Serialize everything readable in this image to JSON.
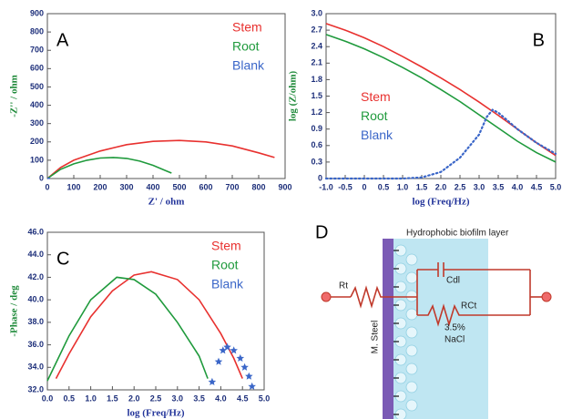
{
  "chart_data": [
    {
      "type": "line",
      "panel_label": "A",
      "xlabel": "Z' / ohm",
      "ylabel": "-Z'' / ohm",
      "legend": "upper right",
      "xlim": [
        0,
        900
      ],
      "xticks": [
        0,
        100,
        200,
        300,
        400,
        500,
        600,
        700,
        800,
        900
      ],
      "ylim": [
        0,
        900
      ],
      "yticks": [
        0,
        100,
        200,
        300,
        400,
        500,
        600,
        700,
        800,
        900
      ],
      "series": [
        {
          "name": "Stem",
          "color": "#e8312f",
          "style": "line",
          "x": [
            0,
            50,
            100,
            200,
            300,
            400,
            500,
            600,
            700,
            800,
            860
          ],
          "values": [
            0,
            60,
            100,
            150,
            185,
            203,
            208,
            200,
            178,
            140,
            115
          ]
        },
        {
          "name": "Root",
          "color": "#1f9a3c",
          "style": "line",
          "x": [
            0,
            50,
            100,
            150,
            200,
            250,
            300,
            350,
            400,
            450,
            470
          ],
          "values": [
            0,
            50,
            80,
            100,
            112,
            115,
            110,
            95,
            72,
            42,
            30
          ]
        },
        {
          "name": "Blank",
          "color": "#3a66c8",
          "style": "line",
          "x": [
            0,
            5,
            10
          ],
          "values": [
            0,
            2,
            0
          ]
        }
      ]
    },
    {
      "type": "line",
      "panel_label": "B",
      "xlabel": "log (Freq/Hz)",
      "ylabel": "log (Z/ohm)",
      "legend": "center left",
      "xlim": [
        -1,
        5
      ],
      "xticks": [
        {
          "value": -1,
          "label": "-1.0"
        },
        -0.5,
        0,
        0.5,
        {
          "value": 1,
          "label": "1.0"
        },
        1.5,
        {
          "value": 2,
          "label": "2.0"
        },
        2.5,
        {
          "value": 3,
          "label": "3.0"
        },
        3.5,
        {
          "value": 4,
          "label": "4.0"
        },
        4.5,
        {
          "value": 5,
          "label": "5.0"
        }
      ],
      "ylim": [
        0,
        3
      ],
      "yticks": [
        0,
        0.3,
        0.6,
        0.9,
        1.2,
        1.5,
        1.8,
        2.1,
        2.4,
        2.7,
        {
          "value": 3,
          "label": "3.0"
        }
      ],
      "series": [
        {
          "name": "Stem",
          "color": "#e8312f",
          "style": "line",
          "x": [
            -1,
            -0.5,
            0,
            0.5,
            1,
            1.5,
            2,
            2.5,
            3,
            3.5,
            4,
            4.5,
            5
          ],
          "values": [
            2.82,
            2.7,
            2.56,
            2.4,
            2.22,
            2.03,
            1.83,
            1.62,
            1.39,
            1.15,
            0.9,
            0.65,
            0.42
          ]
        },
        {
          "name": "Root",
          "color": "#1f9a3c",
          "style": "line",
          "x": [
            -1,
            -0.5,
            0,
            0.5,
            1,
            1.5,
            2,
            2.5,
            3,
            3.5,
            4,
            4.5,
            5
          ],
          "values": [
            2.62,
            2.5,
            2.36,
            2.2,
            2.02,
            1.83,
            1.62,
            1.4,
            1.16,
            0.92,
            0.68,
            0.47,
            0.3
          ]
        },
        {
          "name": "Blank",
          "color": "#3a66c8",
          "style": "dotted",
          "x": [
            -1,
            -0.5,
            0,
            0.5,
            1,
            1.5,
            2,
            2.5,
            3,
            3.2,
            3.35,
            3.5,
            3.75,
            4,
            4.5,
            5
          ],
          "values": [
            0,
            0,
            0,
            0,
            0,
            0.02,
            0.12,
            0.38,
            0.8,
            1.12,
            1.25,
            1.2,
            1.05,
            0.9,
            0.65,
            0.45
          ]
        }
      ]
    },
    {
      "type": "line",
      "panel_label": "C",
      "xlabel": "log (Freq/Hz)",
      "ylabel": "-Phase / deg",
      "legend": "upper right",
      "xlim": [
        0,
        5
      ],
      "xticks": [
        {
          "value": 0,
          "label": "0.0"
        },
        0.5,
        {
          "value": 1,
          "label": "1.0"
        },
        1.5,
        {
          "value": 2,
          "label": "2.0"
        },
        2.5,
        {
          "value": 3,
          "label": "3.0"
        },
        3.5,
        {
          "value": 4,
          "label": "4.0"
        },
        4.5,
        {
          "value": 5,
          "label": "5.0"
        }
      ],
      "ylim": [
        32,
        46
      ],
      "yticks": [
        {
          "value": 32,
          "label": "32.0"
        },
        {
          "value": 34,
          "label": "34.0"
        },
        {
          "value": 36,
          "label": "36.0"
        },
        {
          "value": 38,
          "label": "38.0"
        },
        {
          "value": 40,
          "label": "40.0"
        },
        {
          "value": 42,
          "label": "42.0"
        },
        {
          "value": 44,
          "label": "44.0"
        },
        {
          "value": 46,
          "label": "46.0"
        }
      ],
      "series": [
        {
          "name": "Stem",
          "color": "#e8312f",
          "style": "line",
          "x": [
            0.2,
            0.5,
            1,
            1.5,
            2,
            2.4,
            3,
            3.5,
            4,
            4.3,
            4.5
          ],
          "values": [
            33,
            35.2,
            38.5,
            40.8,
            42.2,
            42.5,
            41.8,
            40,
            37,
            34.8,
            33
          ]
        },
        {
          "name": "Root",
          "color": "#1f9a3c",
          "style": "line",
          "x": [
            0,
            0.5,
            1,
            1.6,
            2,
            2.5,
            3,
            3.5,
            3.7
          ],
          "values": [
            32.8,
            36.8,
            40,
            42,
            41.8,
            40.5,
            38,
            35,
            33
          ]
        },
        {
          "name": "Blank",
          "color": "#3a66c8",
          "style": "star",
          "x": [
            3.8,
            3.95,
            4.05,
            4.15,
            4.3,
            4.45,
            4.55,
            4.65,
            4.72
          ],
          "values": [
            32.7,
            34.5,
            35.5,
            35.8,
            35.5,
            34.8,
            34,
            33.2,
            32.3
          ]
        }
      ]
    }
  ],
  "diagram": {
    "panel_label": "D",
    "layer_label": "Hydrophobic  biofilm layer",
    "rt": "Rt",
    "cdl": "Cdl",
    "rct": "RCt",
    "electrolyte": [
      "3.5%",
      "NaCl"
    ],
    "metal": "M. Steel"
  }
}
